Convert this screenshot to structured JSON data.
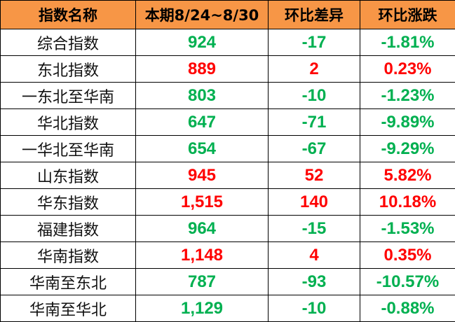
{
  "colors": {
    "header_bg": "#F79646",
    "up": "#FF0000",
    "down": "#00B050"
  },
  "headers": [
    "指数名称",
    "本期8/24~8/30",
    "环比差异",
    "环比涨跌"
  ],
  "rows": [
    {
      "name": "综合指数",
      "value": "924",
      "diff": "-17",
      "pct": "-1.81%",
      "trend": "down"
    },
    {
      "name": "东北指数",
      "value": "889",
      "diff": "2",
      "pct": "0.23%",
      "trend": "up"
    },
    {
      "name": "一东北至华南",
      "value": "803",
      "diff": "-10",
      "pct": "-1.23%",
      "trend": "down"
    },
    {
      "name": "华北指数",
      "value": "647",
      "diff": "-71",
      "pct": "-9.89%",
      "trend": "down"
    },
    {
      "name": "一华北至华南",
      "value": "654",
      "diff": "-67",
      "pct": "-9.29%",
      "trend": "down"
    },
    {
      "name": "山东指数",
      "value": "945",
      "diff": "52",
      "pct": "5.82%",
      "trend": "up"
    },
    {
      "name": "华东指数",
      "value": "1,515",
      "diff": "140",
      "pct": "10.18%",
      "trend": "up"
    },
    {
      "name": "福建指数",
      "value": "964",
      "diff": "-15",
      "pct": "-1.53%",
      "trend": "down"
    },
    {
      "name": "华南指数",
      "value": "1,148",
      "diff": "4",
      "pct": "0.35%",
      "trend": "up"
    },
    {
      "name": "华南至东北",
      "value": "787",
      "diff": "-93",
      "pct": "-10.57%",
      "trend": "down"
    },
    {
      "name": "华南至华北",
      "value": "1,129",
      "diff": "-10",
      "pct": "-0.88%",
      "trend": "down"
    }
  ]
}
